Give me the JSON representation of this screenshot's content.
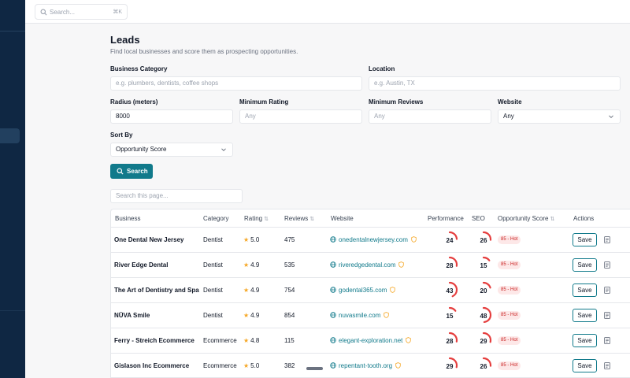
{
  "topbar": {
    "search_placeholder": "Search...",
    "shortcut": "⌘K"
  },
  "page": {
    "title": "Leads",
    "subtitle": "Find local businesses and score them as prospecting opportunities."
  },
  "form": {
    "category_label": "Business Category",
    "category_placeholder": "e.g. plumbers, dentists, coffee shops",
    "location_label": "Location",
    "location_placeholder": "e.g. Austin, TX",
    "radius_label": "Radius (meters)",
    "radius_value": "8000",
    "min_rating_label": "Minimum Rating",
    "min_rating_placeholder": "Any",
    "min_reviews_label": "Minimum Reviews",
    "min_reviews_placeholder": "Any",
    "website_label": "Website",
    "website_value": "Any",
    "sort_label": "Sort By",
    "sort_value": "Opportunity Score",
    "search_button": "Search"
  },
  "table": {
    "page_search_placeholder": "Search this page...",
    "headers": {
      "business": "Business",
      "category": "Category",
      "rating": "Rating",
      "reviews": "Reviews",
      "website": "Website",
      "performance": "Performance",
      "seo": "SEO",
      "opportunity": "Opportunity Score",
      "actions": "Actions"
    },
    "sort_icon": "⇅",
    "save_label": "Save",
    "rows": [
      {
        "business": "One Dental New Jersey",
        "category": "Dentist",
        "rating": "5.0",
        "reviews": "475",
        "website": "onedentalnewjersey.com",
        "performance": 24,
        "seo": 26,
        "opportunity": "85 - Hot"
      },
      {
        "business": "River Edge Dental",
        "category": "Dentist",
        "rating": "4.9",
        "reviews": "535",
        "website": "riveredgedental.com",
        "performance": 28,
        "seo": 15,
        "opportunity": "85 - Hot"
      },
      {
        "business": "The Art of Dentistry and Spa",
        "category": "Dentist",
        "rating": "4.9",
        "reviews": "754",
        "website": "godental365.com",
        "performance": 43,
        "seo": 20,
        "opportunity": "85 - Hot"
      },
      {
        "business": "NŪVA Smile",
        "category": "Dentist",
        "rating": "4.9",
        "reviews": "854",
        "website": "nuvasmile.com",
        "performance": 15,
        "seo": 48,
        "opportunity": "85 - Hot"
      },
      {
        "business": "Ferry - Streich Ecommerce",
        "category": "Ecommerce",
        "rating": "4.8",
        "reviews": "115",
        "website": "elegant-exploration.net",
        "performance": 28,
        "seo": 29,
        "opportunity": "85 - Hot"
      },
      {
        "business": "Gislason Inc Ecommerce",
        "category": "Ecommerce",
        "rating": "5.0",
        "reviews": "382",
        "website": "repentant-tooth.org",
        "performance": 29,
        "seo": 26,
        "opportunity": "85 - Hot"
      }
    ]
  },
  "icons": {
    "star": "★",
    "gauge_color": "#e53e3e",
    "accent": "#117a8b",
    "shield_color": "#f5a623"
  }
}
